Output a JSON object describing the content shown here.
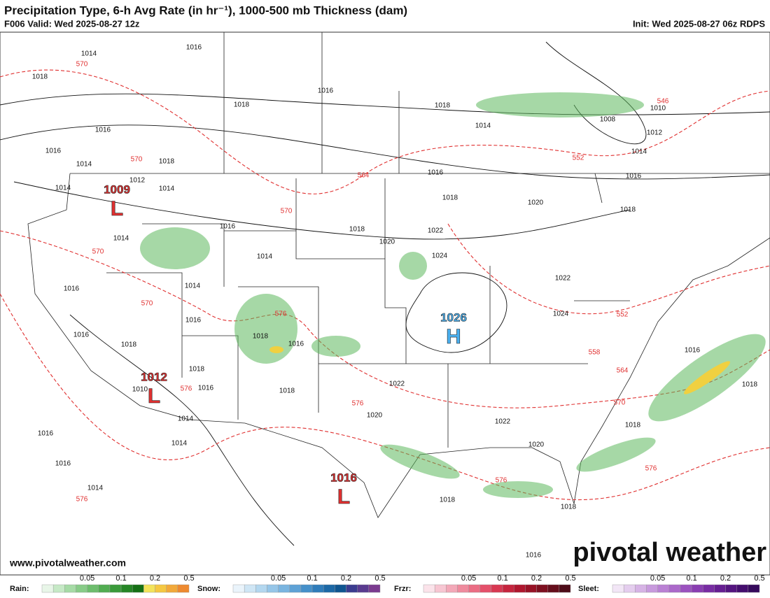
{
  "header": {
    "title": "Precipitation Type, 6-h Avg Rate (in hr⁻¹), 1000-500 mb Thickness (dam)",
    "valid": "F006 Valid: Wed 2025-08-27 12z",
    "init": "Init: Wed 2025-08-27 06z RDPS"
  },
  "pressure_centers": [
    {
      "symbol": "L",
      "value": 1009
    },
    {
      "symbol": "L",
      "value": 1012
    },
    {
      "symbol": "H",
      "value": 1026
    },
    {
      "symbol": "L",
      "value": 1016
    }
  ],
  "isobar_labels": [
    1014,
    1016,
    1018,
    1016,
    1018,
    1018,
    1014,
    1016,
    1016,
    1014,
    1018,
    1012,
    1014,
    1014,
    1016,
    1018,
    1020,
    1018,
    1016,
    1014,
    1012,
    1010,
    1008,
    1016,
    1018,
    1022,
    1020,
    1024,
    1014,
    1014,
    1016,
    1014,
    1016,
    1022,
    1024,
    1016,
    1018,
    1018,
    1016,
    1018,
    1016,
    1018,
    1022,
    1020,
    1014,
    1022,
    1020,
    1016,
    1014,
    1016,
    1014,
    1018,
    1018,
    1018,
    1018,
    1016,
    1016,
    1010
  ],
  "thickness_labels": [
    570,
    570,
    564,
    552,
    546,
    570,
    570,
    570,
    576,
    576,
    552,
    558,
    564,
    570,
    576,
    576,
    576,
    576
  ],
  "legend": [
    {
      "name": "Rain:",
      "ticks": [
        0.05,
        0.1,
        0.2,
        0.5
      ]
    },
    {
      "name": "Snow:",
      "ticks": [
        0.05,
        0.1,
        0.2,
        0.5
      ]
    },
    {
      "name": "Frzr:",
      "ticks": [
        0.05,
        0.1,
        0.2,
        0.5
      ]
    },
    {
      "name": "Sleet:",
      "ticks": [
        0.05,
        0.1,
        0.2,
        0.5
      ]
    }
  ],
  "website": "www.pivotalweather.com",
  "watermark": "pivotal weather"
}
